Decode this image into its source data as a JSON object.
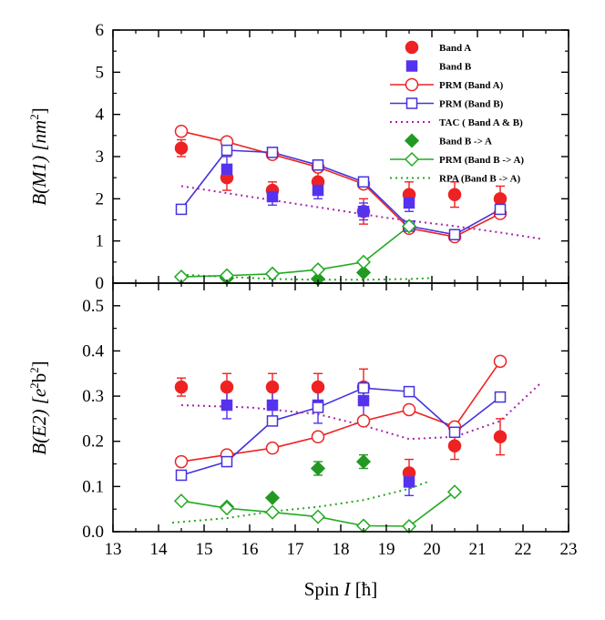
{
  "chart_data": [
    {
      "type": "scatter",
      "panel": "top",
      "ylabel": "B(M1) [nm²]",
      "ylabel_parts": {
        "base": "B(M1) [nm",
        "sup": "2",
        "close": "]"
      },
      "ylim": [
        0,
        6
      ],
      "yticks": [
        "0",
        "1",
        "2",
        "3",
        "4",
        "5",
        "6"
      ],
      "legend_position": "top-right",
      "series": [
        {
          "name": "Band A",
          "kind": "marker",
          "marker": "circle-filled",
          "color": "#ee2222",
          "x": [
            14.5,
            15.5,
            16.5,
            17.5,
            18.5,
            19.5,
            20.5,
            21.5
          ],
          "y": [
            3.2,
            2.5,
            2.2,
            2.4,
            1.7,
            2.1,
            2.1,
            2.0
          ],
          "err": [
            0.2,
            0.3,
            0.2,
            0.3,
            0.3,
            0.3,
            0.3,
            0.3
          ]
        },
        {
          "name": "Band B",
          "kind": "marker",
          "marker": "square-filled",
          "color": "#5533ee",
          "x": [
            15.5,
            16.5,
            17.5,
            18.5,
            19.5
          ],
          "y": [
            2.7,
            2.05,
            2.2,
            1.7,
            1.9
          ],
          "err": [
            0.3,
            0.2,
            0.2,
            0.2,
            0.2
          ]
        },
        {
          "name": "PRM (Band A)",
          "kind": "line-marker",
          "marker": "circle-open",
          "color": "#ee2222",
          "x": [
            14.5,
            15.5,
            16.5,
            17.5,
            18.5,
            19.5,
            20.5,
            21.5
          ],
          "y": [
            3.6,
            3.35,
            3.05,
            2.75,
            2.35,
            1.3,
            1.1,
            1.65
          ]
        },
        {
          "name": "PRM (Band B)",
          "kind": "line-marker",
          "marker": "square-open",
          "color": "#4433dd",
          "x": [
            14.5,
            15.5,
            16.5,
            17.5,
            18.5,
            19.5,
            20.5,
            21.5
          ],
          "y": [
            1.75,
            3.15,
            3.1,
            2.8,
            2.4,
            1.35,
            1.15,
            1.75
          ]
        },
        {
          "name": "TAC ( Band A & B)",
          "kind": "dotted",
          "color": "#aa22aa",
          "x": [
            14.5,
            16.0,
            17.5,
            19.0,
            20.5,
            21.5,
            22.4
          ],
          "y": [
            2.3,
            2.05,
            1.8,
            1.55,
            1.35,
            1.2,
            1.05
          ]
        },
        {
          "name": "Band B -> A",
          "kind": "marker",
          "marker": "diamond-filled",
          "color": "#229922",
          "x": [
            15.5,
            16.5,
            17.5,
            18.5
          ],
          "y": [
            0.12,
            0.22,
            0.1,
            0.25
          ]
        },
        {
          "name": "PRM (Band B -> A)",
          "kind": "line-marker",
          "marker": "diamond-open",
          "color": "#22aa22",
          "x": [
            14.5,
            15.5,
            16.5,
            17.5,
            18.5,
            19.5
          ],
          "y": [
            0.15,
            0.18,
            0.22,
            0.32,
            0.5,
            1.35
          ]
        },
        {
          "name": "RPA  (Band B -> A)",
          "kind": "dotted",
          "color": "#22aa22",
          "x": [
            14.5,
            15.5,
            16.5,
            17.5,
            18.5,
            19.5,
            20.0
          ],
          "y": [
            0.2,
            0.15,
            0.1,
            0.08,
            0.08,
            0.1,
            0.12
          ]
        }
      ]
    },
    {
      "type": "scatter",
      "panel": "bottom",
      "ylabel": "B(E2) [e²b²]",
      "ylabel_parts": {
        "base": "B(E2) [e",
        "sup": "2",
        "mid": "b",
        "sup2": "2",
        "close": "]"
      },
      "ylim": [
        0,
        0.55
      ],
      "yticks": [
        "0.0",
        "0.1",
        "0.2",
        "0.3",
        "0.4",
        "0.5"
      ],
      "xlabel": "Spin I [ħ]",
      "xlabel_parts": {
        "base": "Spin ",
        "italic": "I",
        "rest": " [ħ]"
      },
      "xlim": [
        13,
        23
      ],
      "xticks": [
        "13",
        "14",
        "15",
        "16",
        "17",
        "18",
        "19",
        "20",
        "21",
        "22",
        "23"
      ],
      "series": [
        {
          "name": "Band A",
          "kind": "marker",
          "marker": "circle-filled",
          "color": "#ee2222",
          "x": [
            14.5,
            15.5,
            16.5,
            17.5,
            18.5,
            19.5,
            20.5,
            21.5
          ],
          "y": [
            0.32,
            0.32,
            0.32,
            0.32,
            0.32,
            0.13,
            0.19,
            0.21
          ],
          "err": [
            0.02,
            0.03,
            0.03,
            0.03,
            0.04,
            0.03,
            0.03,
            0.04
          ]
        },
        {
          "name": "Band B",
          "kind": "marker",
          "marker": "square-filled",
          "color": "#5533ee",
          "x": [
            15.5,
            16.5,
            17.5,
            18.5,
            19.5
          ],
          "y": [
            0.28,
            0.28,
            0.28,
            0.29,
            0.11
          ],
          "err": [
            0.03,
            0.03,
            0.04,
            0.04,
            0.03
          ]
        },
        {
          "name": "PRM (Band A)",
          "kind": "line-marker",
          "marker": "circle-open",
          "color": "#ee2222",
          "x": [
            14.5,
            15.5,
            16.5,
            17.5,
            18.5,
            19.5,
            20.5,
            21.5
          ],
          "y": [
            0.155,
            0.17,
            0.185,
            0.21,
            0.245,
            0.27,
            0.232,
            0.377
          ]
        },
        {
          "name": "PRM (Band B)",
          "kind": "line-marker",
          "marker": "square-open",
          "color": "#4433dd",
          "x": [
            14.5,
            15.5,
            16.5,
            17.5,
            18.5,
            19.5,
            20.5,
            21.5
          ],
          "y": [
            0.125,
            0.155,
            0.245,
            0.275,
            0.318,
            0.31,
            0.22,
            0.298
          ]
        },
        {
          "name": "TAC ( Band A & B)",
          "kind": "dotted",
          "color": "#aa22aa",
          "x": [
            14.5,
            16.0,
            17.5,
            18.5,
            19.5,
            20.5,
            21.5,
            22.4
          ],
          "y": [
            0.28,
            0.275,
            0.26,
            0.235,
            0.205,
            0.21,
            0.245,
            0.33
          ]
        },
        {
          "name": "Band B -> A",
          "kind": "marker",
          "marker": "diamond-filled",
          "color": "#229922",
          "x": [
            15.5,
            16.5,
            17.5,
            18.5
          ],
          "y": [
            0.055,
            0.075,
            0.14,
            0.155
          ],
          "err": [
            0,
            0,
            0.015,
            0.015
          ]
        },
        {
          "name": "PRM (Band B -> A)",
          "kind": "line-marker",
          "marker": "diamond-open",
          "color": "#22aa22",
          "x": [
            14.5,
            15.5,
            16.5,
            17.5,
            18.5,
            19.5,
            20.5
          ],
          "y": [
            0.068,
            0.052,
            0.043,
            0.033,
            0.013,
            0.012,
            0.088
          ]
        },
        {
          "name": "RPA  (Band B -> A)",
          "kind": "dotted",
          "color": "#22aa22",
          "x": [
            14.3,
            15.5,
            16.5,
            17.5,
            18.5,
            19.5,
            19.9
          ],
          "y": [
            0.02,
            0.03,
            0.045,
            0.055,
            0.07,
            0.095,
            0.11
          ]
        }
      ]
    }
  ]
}
